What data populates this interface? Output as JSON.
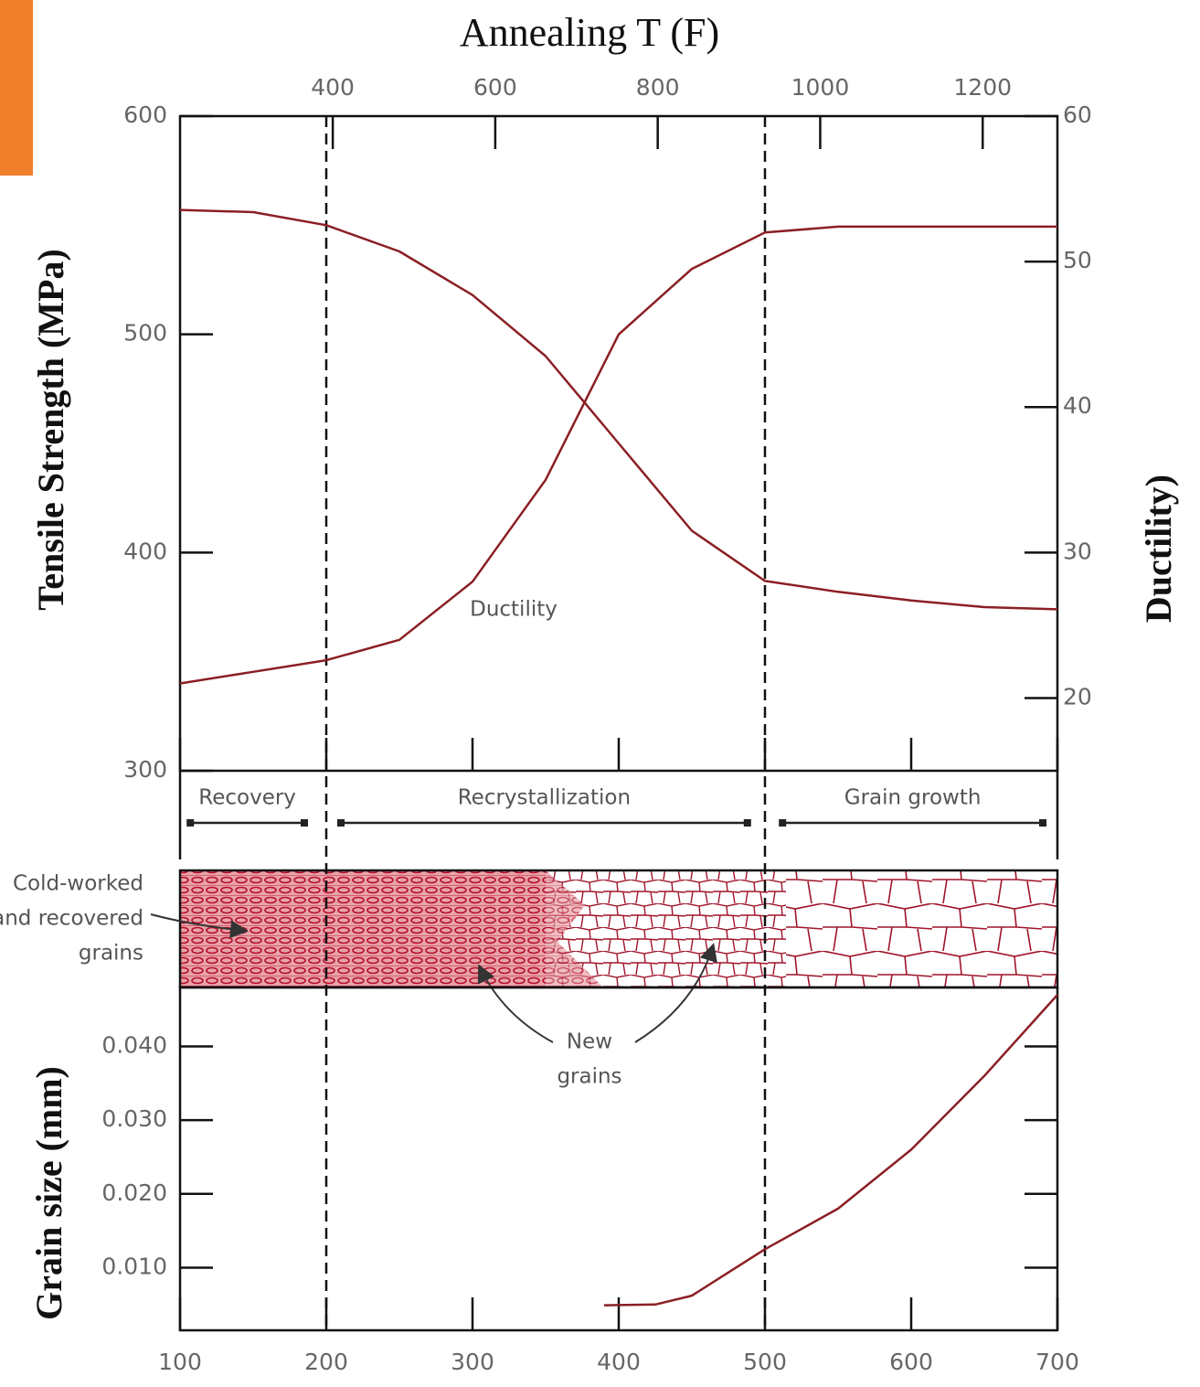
{
  "chart_data": [
    {
      "type": "line",
      "x2label": "Annealing T (F)",
      "ylabel": "Tensile Strength (MPa)",
      "y2label": "Ductility)",
      "xlim": [
        100,
        700
      ],
      "xticks": [
        100,
        200,
        300,
        400,
        500,
        600,
        700
      ],
      "x2lim": [
        212,
        1292
      ],
      "x2ticks": [
        400,
        600,
        800,
        1000,
        1200
      ],
      "ylim": [
        300,
        600
      ],
      "yticks": [
        300,
        400,
        500,
        600
      ],
      "y2lim": [
        15,
        60
      ],
      "y2ticks": [
        20,
        30,
        40,
        50,
        60
      ],
      "vlines": [
        200,
        500
      ],
      "phases": [
        {
          "label": "Recovery",
          "range": [
            107,
            185
          ]
        },
        {
          "label": "Recrystallization",
          "range": [
            210,
            488
          ]
        },
        {
          "label": "Grain growth",
          "range": [
            512,
            690
          ]
        }
      ],
      "series": [
        {
          "color": "#8b1f24",
          "x": [
            100,
            150,
            200,
            250,
            300,
            350,
            400,
            450,
            500,
            550,
            600,
            650,
            700
          ],
          "values": [
            557,
            556,
            550,
            538,
            518,
            490,
            450,
            410,
            387,
            382,
            378,
            375,
            374
          ]
        },
        {
          "color": "#8b1f24",
          "axis": "y2",
          "x": [
            100,
            150,
            200,
            250,
            300,
            350,
            375,
            400,
            450,
            500,
            550,
            600,
            650,
            700
          ],
          "values": [
            21,
            21.8,
            22.6,
            24,
            28,
            35,
            40,
            45,
            49.5,
            52,
            52.4,
            52.4,
            52.4,
            52.4
          ]
        }
      ],
      "annotations": [
        "Ductility"
      ]
    },
    {
      "type": "line",
      "ylabel": "Grain size (mm)",
      "xlim": [
        100,
        700
      ],
      "xticks": [
        100,
        200,
        300,
        400,
        500,
        600,
        700
      ],
      "ylim": [
        0.0015,
        0.048
      ],
      "yticks": [
        {
          "value": 0.01,
          "label": "0.010"
        },
        {
          "value": 0.02,
          "label": "0.020"
        },
        {
          "value": 0.03,
          "label": "0.030"
        },
        {
          "value": 0.04,
          "label": "0.040"
        }
      ],
      "series": [
        {
          "color": "#8b1f24",
          "x": [
            390,
            425,
            450,
            500,
            550,
            600,
            650,
            700
          ],
          "values": [
            0.0049,
            0.005,
            0.0062,
            0.0125,
            0.018,
            0.026,
            0.036,
            0.047
          ]
        }
      ],
      "annotations": [
        "Cold-worked",
        "and recovered",
        "grains",
        "New",
        "grains"
      ]
    }
  ]
}
